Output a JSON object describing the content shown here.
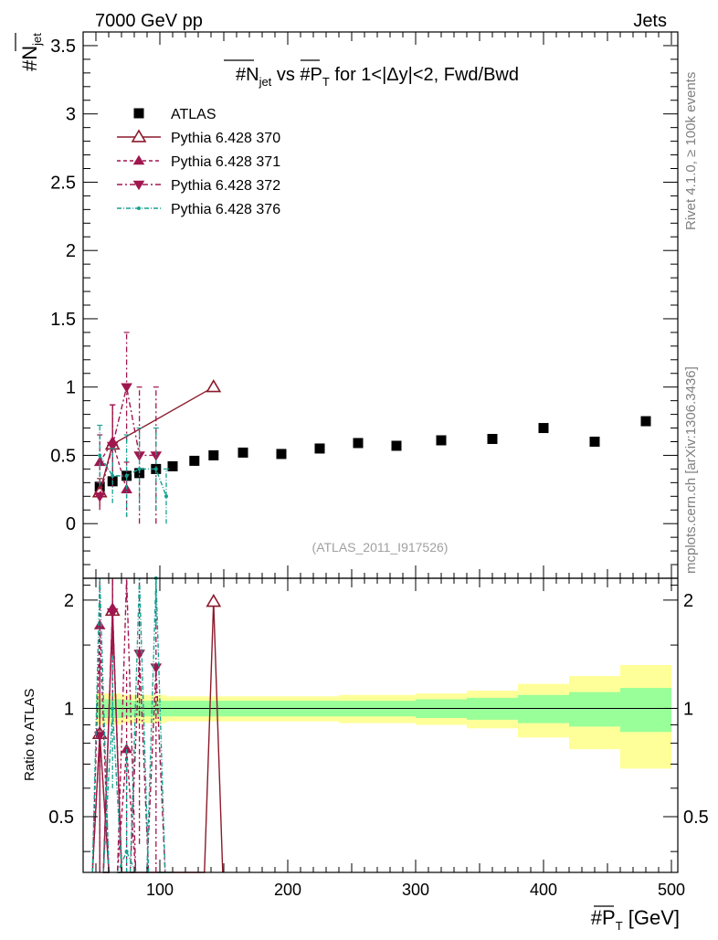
{
  "header": {
    "left": "7000 GeV pp",
    "right": "Jets"
  },
  "side_text": {
    "top": "Rivet 4.1.0, ≥ 100k events",
    "bottom": "mcplots.cern.ch [arXiv:1306.3436]"
  },
  "chart_data": {
    "type": "scatter",
    "title_parts": {
      "a": "#N",
      "a_sub": "jet",
      "b": " vs #P",
      "b_sub": "T",
      "c": " for 1<|Δy|<2, Fwd/Bwd"
    },
    "ylabel": {
      "main": "#N",
      "sub": "jet"
    },
    "xlabel": {
      "main": "#P",
      "sub": "T",
      "unit": " [GeV]"
    },
    "ratio_ylabel": "Ratio to ATLAS",
    "watermark": "(ATLAS_2011_I917526)",
    "xlim": [
      40,
      505
    ],
    "ylim": [
      -0.4,
      3.6
    ],
    "ratio_ylim": [
      0.35,
      2.3
    ],
    "x_ticks": [
      "100",
      "200",
      "300",
      "400",
      "500"
    ],
    "y_ticks": [
      "0",
      "0.5",
      "1",
      "1.5",
      "2",
      "2.5",
      "3",
      "3.5"
    ],
    "ratio_ticks": [
      "0.5",
      "1",
      "2"
    ],
    "bins": [
      [
        50,
        57
      ],
      [
        57,
        70
      ],
      [
        70,
        78
      ],
      [
        78,
        90
      ],
      [
        90,
        105
      ],
      [
        105,
        115
      ],
      [
        115,
        135
      ],
      [
        135,
        150
      ],
      [
        150,
        180
      ],
      [
        180,
        210
      ],
      [
        210,
        240
      ],
      [
        240,
        270
      ],
      [
        270,
        300
      ],
      [
        300,
        340
      ],
      [
        340,
        380
      ],
      [
        380,
        420
      ],
      [
        420,
        460
      ],
      [
        460,
        500
      ]
    ],
    "series": [
      {
        "name": "ATLAS",
        "color": "#000000",
        "marker": "square",
        "x": [
          53,
          63,
          74,
          84,
          97,
          110,
          127,
          142,
          165,
          195,
          225,
          255,
          285,
          320,
          360,
          400,
          440,
          480
        ],
        "y": [
          0.27,
          0.31,
          0.35,
          0.37,
          0.4,
          0.42,
          0.46,
          0.5,
          0.52,
          0.51,
          0.55,
          0.59,
          0.57,
          0.61,
          0.62,
          0.7,
          0.6,
          0.75
        ],
        "band_inner": [
          0.06,
          0.06,
          0.055,
          0.05,
          0.05,
          0.05,
          0.05,
          0.05,
          0.05,
          0.05,
          0.05,
          0.05,
          0.05,
          0.06,
          0.07,
          0.09,
          0.11,
          0.14
        ],
        "band_outer": [
          0.1,
          0.1,
          0.09,
          0.09,
          0.09,
          0.08,
          0.08,
          0.08,
          0.08,
          0.08,
          0.08,
          0.09,
          0.09,
          0.1,
          0.12,
          0.17,
          0.23,
          0.32
        ]
      },
      {
        "name": "Pythia 6.428 370",
        "color": "#8b1a2b",
        "marker": "tri-up-open",
        "dash": "",
        "x": [
          53,
          63,
          142
        ],
        "y": [
          0.23,
          0.58,
          1.0
        ],
        "err": [
          0.1,
          0.29,
          0
        ],
        "ratio": [
          0.85,
          1.87,
          1.98
        ],
        "ratio_err": [
          0.5,
          0.5,
          0
        ]
      },
      {
        "name": "Pythia 6.428 371",
        "color": "#a0164f",
        "marker": "tri-up-filled",
        "dash": "4,3",
        "x": [
          53,
          63,
          74
        ],
        "y": [
          0.45,
          0.6,
          0.25
        ],
        "err": [
          0.2,
          0.27,
          0.2
        ],
        "ratio": [
          1.7,
          1.9,
          0.77
        ],
        "ratio_err": [
          0.6,
          0.8,
          0.5
        ]
      },
      {
        "name": "Pythia 6.428 372",
        "color": "#a0164f",
        "marker": "tri-down-filled",
        "dash": "6,3,2,3",
        "x": [
          53,
          63,
          74,
          84,
          97
        ],
        "y": [
          0.2,
          0.57,
          1.0,
          0.5,
          0.5
        ],
        "err": [
          0.1,
          0.3,
          0.4,
          0.5,
          0.5
        ],
        "ratio": [
          0.84,
          1.85,
          2.8,
          1.42,
          1.3
        ],
        "ratio_err": [
          0.5,
          0.8,
          0.8,
          1.0,
          1.0
        ]
      },
      {
        "name": "Pythia 6.428 376",
        "color": "#17a191",
        "marker": "dot",
        "dash": "5,2,1,2",
        "x": [
          53,
          63,
          74,
          84,
          97,
          105
        ],
        "y": [
          0.5,
          0.35,
          0.35,
          0.4,
          0.4,
          0.2
        ],
        "err": [
          0.22,
          0.2,
          0.3,
          0.3,
          0.3,
          0.2
        ],
        "ratio": [
          2.5,
          1.0,
          0.4,
          3.0,
          2.3,
          0.2
        ],
        "ratio_err": [
          0.6,
          0.4,
          0.4,
          0.6,
          0.6,
          0.1
        ]
      }
    ]
  }
}
